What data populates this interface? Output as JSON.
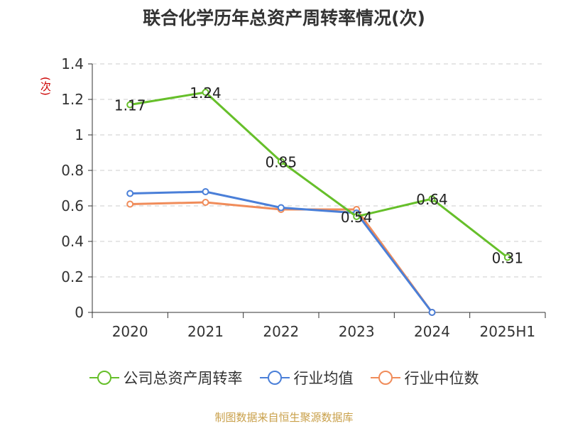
{
  "chart_data": {
    "type": "line",
    "title": "联合化学历年总资产周转率情况(次)",
    "ylabel": "(次)",
    "categories": [
      "2020",
      "2021",
      "2022",
      "2023",
      "2024",
      "2025H1"
    ],
    "ylim": [
      0,
      1.4
    ],
    "yticks": [
      "0",
      "0.2",
      "0.4",
      "0.6",
      "0.8",
      "1",
      "1.2",
      "1.4"
    ],
    "grid": true,
    "legend_position": "bottom",
    "series": [
      {
        "name": "公司总资产周转率",
        "color": "#66bf2a",
        "values": [
          1.17,
          1.24,
          0.85,
          0.54,
          0.64,
          0.31
        ],
        "labels": [
          "1.17",
          "1.24",
          "0.85",
          "0.54",
          "0.64",
          "0.31"
        ]
      },
      {
        "name": "行业均值",
        "color": "#4a7fd8",
        "values": [
          0.67,
          0.68,
          0.59,
          0.56,
          0,
          null
        ]
      },
      {
        "name": "行业中位数",
        "color": "#f08c5a",
        "values": [
          0.61,
          0.62,
          0.58,
          0.58,
          0,
          null
        ]
      }
    ]
  },
  "source": "制图数据来自恒生聚源数据库"
}
